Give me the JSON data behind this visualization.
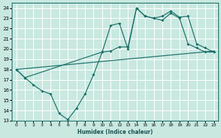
{
  "xlabel": "Humidex (Indice chaleur)",
  "bg_color": "#c8e8e0",
  "grid_color": "#ffffff",
  "line_color": "#1a7068",
  "xlim": [
    -0.5,
    23.5
  ],
  "ylim": [
    13,
    24.5
  ],
  "xticks": [
    0,
    1,
    2,
    3,
    4,
    5,
    6,
    7,
    8,
    9,
    10,
    11,
    12,
    13,
    14,
    15,
    16,
    17,
    18,
    19,
    20,
    21,
    22,
    23
  ],
  "yticks": [
    13,
    14,
    15,
    16,
    17,
    18,
    19,
    20,
    21,
    22,
    23,
    24
  ],
  "line1_x": [
    0,
    1,
    2,
    3,
    4,
    5,
    6,
    7,
    8,
    9,
    10,
    11,
    12,
    13,
    14,
    15,
    16,
    17,
    18,
    19,
    20,
    21,
    22,
    23
  ],
  "line1_y": [
    18.0,
    17.2,
    16.5,
    15.9,
    15.6,
    13.7,
    13.1,
    14.2,
    15.6,
    17.5,
    19.7,
    19.8,
    20.2,
    20.2,
    24.0,
    23.2,
    23.0,
    22.8,
    23.5,
    23.0,
    20.5,
    20.1,
    19.7,
    19.7
  ],
  "line2_x": [
    0,
    23
  ],
  "line2_y": [
    18.0,
    19.8
  ],
  "line3_x": [
    0,
    1,
    10,
    11,
    12,
    13,
    14,
    15,
    16,
    17,
    18,
    19,
    20,
    21,
    22,
    23
  ],
  "line3_y": [
    18.0,
    17.2,
    19.7,
    22.3,
    22.5,
    20.0,
    24.0,
    23.2,
    23.0,
    23.2,
    23.7,
    23.1,
    23.2,
    20.5,
    20.1,
    19.7
  ]
}
